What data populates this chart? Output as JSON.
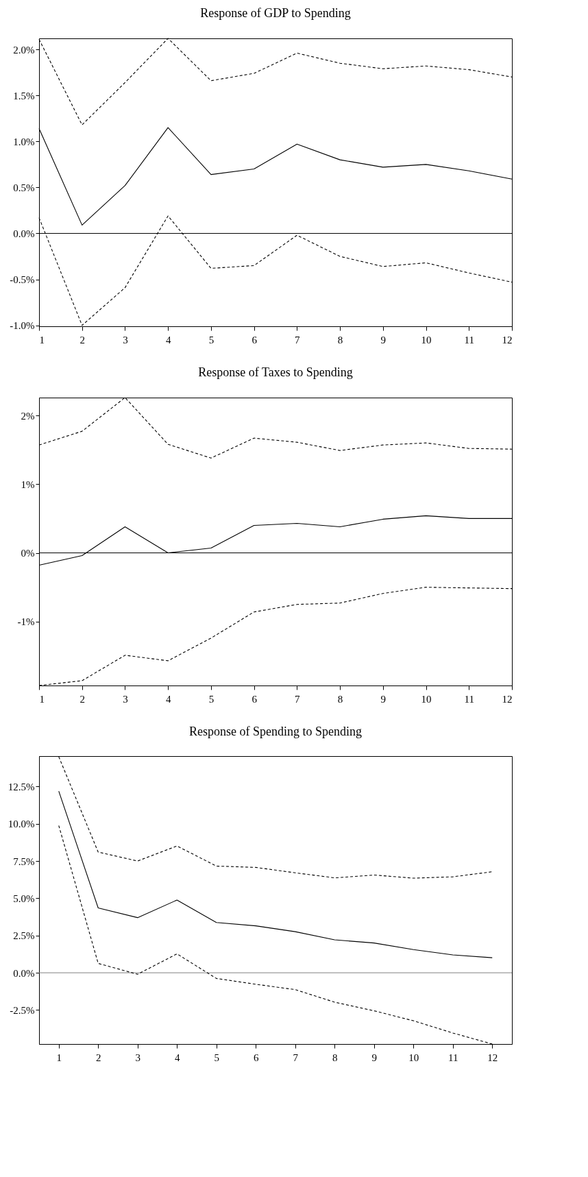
{
  "chart_data": [
    {
      "type": "line",
      "title": "Response of GDP to Spending",
      "x": [
        1,
        2,
        3,
        4,
        5,
        6,
        7,
        8,
        9,
        10,
        11,
        12
      ],
      "xlim": [
        1,
        12
      ],
      "xticks": [
        1,
        2,
        3,
        4,
        5,
        6,
        7,
        8,
        9,
        10,
        11,
        12
      ],
      "ylim": [
        -1.01,
        2.12
      ],
      "yticks": [
        {
          "value": -1,
          "label": "-1.0%"
        },
        {
          "value": -0.5,
          "label": "-0.5%"
        },
        {
          "value": 0,
          "label": "0.0%"
        },
        {
          "value": 0.5,
          "label": "0.5%"
        },
        {
          "value": 1,
          "label": "1.0%"
        },
        {
          "value": 1.5,
          "label": "1.5%"
        },
        {
          "value": 2,
          "label": "2.0%"
        }
      ],
      "grid": false,
      "marker": "none",
      "ref_lines": [
        {
          "axis": "y",
          "value": 0,
          "color": "#000000"
        }
      ],
      "series": [
        {
          "color": "#000000",
          "line_style": "solid",
          "values": [
            1.14,
            0.09,
            0.52,
            1.15,
            0.64,
            0.7,
            0.97,
            0.8,
            0.72,
            0.75,
            0.68,
            0.59
          ]
        },
        {
          "color": "#000000",
          "line_style": "dashed",
          "values": [
            2.11,
            1.18,
            1.64,
            2.12,
            1.66,
            1.74,
            1.96,
            1.85,
            1.79,
            1.82,
            1.78,
            1.7
          ]
        },
        {
          "color": "#000000",
          "line_style": "dashed",
          "values": [
            0.17,
            -1.0,
            -0.59,
            0.19,
            -0.38,
            -0.35,
            -0.02,
            -0.25,
            -0.36,
            -0.32,
            -0.43,
            -0.53
          ]
        }
      ]
    },
    {
      "type": "line",
      "title": "Response of Taxes to Spending",
      "x": [
        1,
        2,
        3,
        4,
        5,
        6,
        7,
        8,
        9,
        10,
        11,
        12
      ],
      "xlim": [
        1,
        12
      ],
      "xticks": [
        1,
        2,
        3,
        4,
        5,
        6,
        7,
        8,
        9,
        10,
        11,
        12
      ],
      "ylim": [
        -1.93,
        2.26
      ],
      "yticks": [
        {
          "value": -1,
          "label": "-1%"
        },
        {
          "value": 0,
          "label": "0%"
        },
        {
          "value": 1,
          "label": "1%"
        },
        {
          "value": 2,
          "label": "2%"
        }
      ],
      "grid": false,
      "marker": "none",
      "ref_lines": [
        {
          "axis": "y",
          "value": 0,
          "color": "#000000"
        }
      ],
      "series": [
        {
          "color": "#000000",
          "line_style": "solid",
          "values": [
            -0.18,
            -0.04,
            0.38,
            0.0,
            0.07,
            0.4,
            0.43,
            0.38,
            0.49,
            0.54,
            0.5,
            0.5
          ]
        },
        {
          "color": "#000000",
          "line_style": "dashed",
          "values": [
            1.57,
            1.77,
            2.26,
            1.58,
            1.38,
            1.67,
            1.61,
            1.49,
            1.57,
            1.6,
            1.52,
            1.51
          ]
        },
        {
          "color": "#000000",
          "line_style": "dashed",
          "values": [
            -1.93,
            -1.86,
            -1.49,
            -1.57,
            -1.24,
            -0.86,
            -0.75,
            -0.73,
            -0.59,
            -0.5,
            -0.51,
            -0.52
          ]
        }
      ]
    },
    {
      "type": "line",
      "title": "Response of Spending to Spending",
      "x": [
        1,
        2,
        3,
        4,
        5,
        6,
        7,
        8,
        9,
        10,
        11,
        12
      ],
      "xlim": [
        0.5,
        12.5
      ],
      "xticks": [
        1,
        2,
        3,
        4,
        5,
        6,
        7,
        8,
        9,
        10,
        11,
        12
      ],
      "ylim": [
        -4.78,
        14.54
      ],
      "yticks": [
        {
          "value": -2.5,
          "label": "-2.5%"
        },
        {
          "value": 0,
          "label": "0.0%"
        },
        {
          "value": 2.5,
          "label": "2.5%"
        },
        {
          "value": 5,
          "label": "5.0%"
        },
        {
          "value": 7.5,
          "label": "7.5%"
        },
        {
          "value": 10,
          "label": "10.0%"
        },
        {
          "value": 12.5,
          "label": "12.5%"
        }
      ],
      "grid": false,
      "marker": "none",
      "ref_lines": [
        {
          "axis": "y",
          "value": 0,
          "color": "#808080"
        }
      ],
      "series": [
        {
          "color": "#000000",
          "line_style": "solid",
          "values": [
            12.19,
            4.35,
            3.7,
            4.88,
            3.37,
            3.15,
            2.76,
            2.21,
            2.0,
            1.56,
            1.2,
            1.01
          ]
        },
        {
          "color": "#000000",
          "line_style": "dashed",
          "values": [
            14.5,
            8.1,
            7.5,
            8.51,
            7.16,
            7.07,
            6.71,
            6.37,
            6.56,
            6.35,
            6.44,
            6.78
          ]
        },
        {
          "color": "#000000",
          "line_style": "dashed",
          "values": [
            9.88,
            0.63,
            -0.1,
            1.27,
            -0.38,
            -0.77,
            -1.13,
            -1.97,
            -2.55,
            -3.22,
            -4.04,
            -4.78
          ]
        }
      ]
    }
  ]
}
